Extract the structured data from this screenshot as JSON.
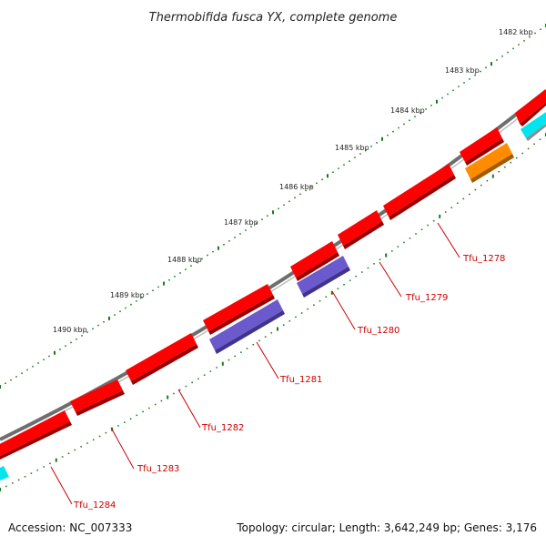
{
  "title": "Thermobifida fusca YX, complete genome",
  "footer": {
    "accession": "Accession: NC_007333",
    "info": "Topology: circular; Length: 3,642,249 bp; Genes: 3,176"
  },
  "colors": {
    "backbone": "#666666",
    "gene_red": "#ff0000",
    "gene_purple": "#6a5acd",
    "gene_orange": "#ff8c00",
    "gene_cyan": "#00e5ee",
    "ticks": "#1a7a1a",
    "label": "#cc0000"
  },
  "kbp_labels": [
    "1482 kbp",
    "1483 kbp",
    "1484 kbp",
    "1485 kbp",
    "1486 kbp",
    "1487 kbp",
    "1488 kbp",
    "1489 kbp",
    "1490 kbp"
  ],
  "gene_labels": [
    "Tfu_1278",
    "Tfu_1279",
    "Tfu_1280",
    "Tfu_1281",
    "Tfu_1282",
    "Tfu_1283",
    "Tfu_1284"
  ]
}
